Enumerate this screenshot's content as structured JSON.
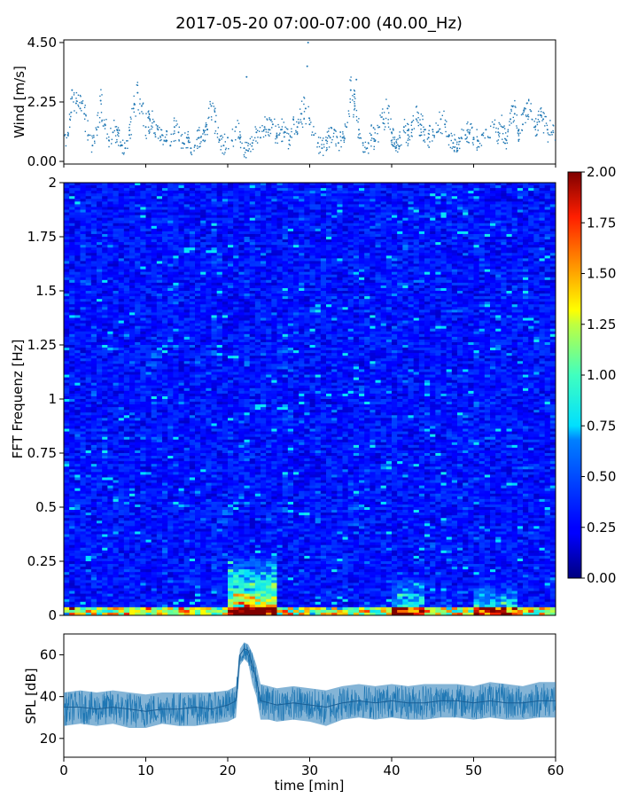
{
  "chart_data": [
    {
      "type": "scatter",
      "title": "2017-05-20 07:00-07:00 (40.00_Hz)",
      "ylabel": "Wind [m/s]",
      "ylim": [
        -0.1,
        4.6
      ],
      "xlim": [
        0,
        60
      ],
      "yticks": [
        0.0,
        2.25,
        4.5
      ],
      "ytick_labels": [
        "0.00",
        "2.25",
        "4.50"
      ],
      "color": "#1f77b4",
      "x": [
        0.5,
        1,
        1.5,
        2,
        2.5,
        3,
        3.5,
        4,
        4.5,
        5,
        5.5,
        6,
        6.5,
        7,
        7.5,
        8,
        8.5,
        9,
        9.5,
        10,
        10.5,
        11,
        11.5,
        12,
        12.5,
        13,
        13.5,
        14,
        14.5,
        15,
        15.5,
        16,
        16.5,
        17,
        17.5,
        18,
        18.5,
        19,
        19.5,
        20,
        20.5,
        21,
        21.5,
        22,
        22.5,
        23,
        23.5,
        24,
        24.5,
        25,
        25.5,
        26,
        26.5,
        27,
        27.5,
        28,
        28.5,
        29,
        29.5,
        30,
        30.5,
        31,
        31.5,
        32,
        32.5,
        33,
        33.5,
        34,
        34.5,
        35,
        35.5,
        36,
        36.5,
        37,
        37.5,
        38,
        38.5,
        39,
        39.5,
        40,
        40.5,
        41,
        41.5,
        42,
        42.5,
        43,
        43.5,
        44,
        44.5,
        45,
        45.5,
        46,
        46.5,
        47,
        47.5,
        48,
        48.5,
        49,
        49.5,
        50,
        50.5,
        51,
        51.5,
        52,
        52.5,
        53,
        53.5,
        54,
        54.5,
        55,
        55.5,
        56,
        56.5,
        57,
        57.5,
        58,
        58.5,
        59,
        59.5
      ],
      "y": [
        1.0,
        2.7,
        2.2,
        2.0,
        1.8,
        1.0,
        0.6,
        1.2,
        2.3,
        1.4,
        0.8,
        1.1,
        1.2,
        0.6,
        0.5,
        1.0,
        2.0,
        2.6,
        2.1,
        1.3,
        1.6,
        1.5,
        1.2,
        1.0,
        0.8,
        0.6,
        1.3,
        1.1,
        0.7,
        0.9,
        0.5,
        0.6,
        0.9,
        0.8,
        1.2,
        2.1,
        1.5,
        0.8,
        0.6,
        0.9,
        0.8,
        1.3,
        0.9,
        0.5,
        0.4,
        0.7,
        1.1,
        0.9,
        1.3,
        1.2,
        1.4,
        1.0,
        1.2,
        1.1,
        0.8,
        1.6,
        1.3,
        1.8,
        2.0,
        1.4,
        1.0,
        0.7,
        0.5,
        0.8,
        0.9,
        1.2,
        0.7,
        0.9,
        1.3,
        2.7,
        2.1,
        1.2,
        0.7,
        0.5,
        1.0,
        0.8,
        1.3,
        1.6,
        2.0,
        1.1,
        0.5,
        0.9,
        1.3,
        1.0,
        1.2,
        1.6,
        1.4,
        1.2,
        0.9,
        1.2,
        1.1,
        1.6,
        1.4,
        1.0,
        0.7,
        0.5,
        0.9,
        1.0,
        1.1,
        0.9,
        0.8,
        1.0,
        1.2,
        0.9,
        1.4,
        1.1,
        1.3,
        0.8,
        1.6,
        1.8,
        1.2,
        1.4,
        2.2,
        1.9,
        1.3,
        1.5,
        1.6,
        1.2,
        1.1
      ],
      "note": ""
    },
    {
      "type": "heatmap",
      "ylabel": "FFT Frequenz [Hz]",
      "xlim": [
        0,
        60
      ],
      "ylim": [
        0,
        2
      ],
      "yticks": [
        0,
        0.25,
        0.5,
        0.75,
        1,
        1.25,
        1.5,
        1.75,
        2
      ],
      "ytick_labels": [
        "0",
        "0.25",
        "0.5",
        "0.75",
        "1",
        "1.25",
        "1.5",
        "1.75",
        "2"
      ],
      "colormap": "jet",
      "colorbar_range": [
        0,
        2
      ],
      "colorbar_ticks": [
        "0.00",
        "0.25",
        "0.50",
        "0.75",
        "1.00",
        "1.25",
        "1.50",
        "1.75",
        "2.00"
      ],
      "hot_regions": [
        {
          "x_range": [
            20,
            26
          ],
          "freq_range": [
            0,
            0.3
          ],
          "level": 1.6
        },
        {
          "x_range": [
            40,
            44
          ],
          "freq_range": [
            0,
            0.2
          ],
          "level": 1.1
        },
        {
          "x_range": [
            50,
            55
          ],
          "freq_range": [
            0,
            0.15
          ],
          "level": 1.1
        }
      ],
      "background_level": 0.3
    },
    {
      "type": "area",
      "ylabel": "SPL [dB]",
      "xlabel": "time [min]",
      "xlim": [
        0,
        60
      ],
      "ylim": [
        11,
        70
      ],
      "yticks": [
        20,
        40,
        60
      ],
      "ytick_labels": [
        "20",
        "40",
        "60"
      ],
      "xticks": [
        0,
        10,
        20,
        30,
        40,
        50,
        60
      ],
      "xtick_labels": [
        "0",
        "10",
        "20",
        "30",
        "40",
        "50",
        "60"
      ],
      "color": "#1f77b4",
      "x": [
        0,
        2,
        4,
        6,
        8,
        10,
        12,
        14,
        16,
        18,
        20,
        21,
        21.5,
        22,
        22.5,
        23,
        23.5,
        24,
        25,
        26,
        28,
        30,
        32,
        34,
        36,
        38,
        40,
        42,
        44,
        46,
        48,
        50,
        52,
        54,
        56,
        58,
        60
      ],
      "y_mean": [
        35,
        35,
        34,
        35,
        34,
        33,
        34,
        34,
        35,
        34,
        36,
        38,
        60,
        63,
        62,
        55,
        48,
        38,
        37,
        36,
        37,
        36,
        35,
        37,
        38,
        37,
        38,
        37,
        37,
        38,
        38,
        37,
        38,
        37,
        37,
        38,
        38
      ],
      "y_low": [
        26,
        27,
        26,
        27,
        25,
        25,
        27,
        26,
        26,
        27,
        28,
        30,
        55,
        58,
        56,
        46,
        40,
        29,
        29,
        28,
        29,
        28,
        26,
        29,
        30,
        29,
        30,
        29,
        29,
        30,
        30,
        29,
        30,
        29,
        29,
        30,
        30
      ],
      "y_high": [
        42,
        43,
        42,
        43,
        42,
        41,
        42,
        42,
        42,
        42,
        43,
        45,
        63,
        66,
        65,
        61,
        55,
        46,
        45,
        44,
        45,
        44,
        43,
        45,
        46,
        45,
        46,
        45,
        46,
        46,
        46,
        45,
        47,
        46,
        45,
        47,
        47
      ]
    }
  ]
}
